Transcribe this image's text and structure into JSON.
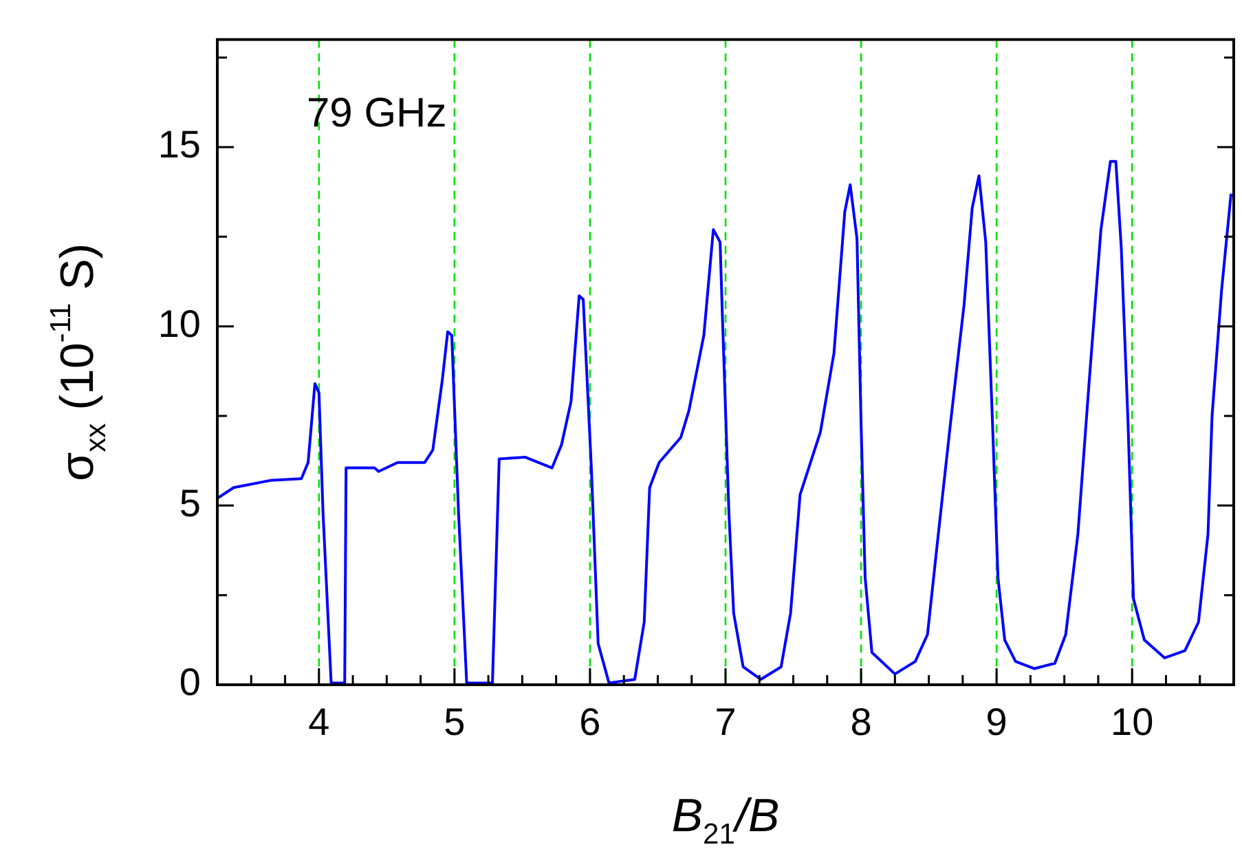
{
  "chart_data": {
    "type": "line",
    "xlabel": "B$_{21}$/B",
    "ylabel": "σ$_{xx}$ (10$^{-11}$ S)",
    "annotations": [
      "79 GHz"
    ],
    "xlim": [
      3.25,
      10.75
    ],
    "ylim": [
      0,
      18
    ],
    "xticks": [
      {
        "value": 3.5,
        "label": null
      },
      {
        "value": 3.75,
        "label": null
      },
      4,
      {
        "value": 4.25,
        "label": null
      },
      {
        "value": 4.5,
        "label": null
      },
      {
        "value": 4.75,
        "label": null
      },
      5,
      {
        "value": 5.25,
        "label": null
      },
      {
        "value": 5.5,
        "label": null
      },
      {
        "value": 5.75,
        "label": null
      },
      6,
      {
        "value": 6.25,
        "label": null
      },
      {
        "value": 6.5,
        "label": null
      },
      {
        "value": 6.75,
        "label": null
      },
      7,
      {
        "value": 7.25,
        "label": null
      },
      {
        "value": 7.5,
        "label": null
      },
      {
        "value": 7.75,
        "label": null
      },
      8,
      {
        "value": 8.25,
        "label": null
      },
      {
        "value": 8.5,
        "label": null
      },
      {
        "value": 8.75,
        "label": null
      },
      9,
      {
        "value": 9.25,
        "label": null
      },
      {
        "value": 9.5,
        "label": null
      },
      {
        "value": 9.75,
        "label": null
      },
      10,
      {
        "value": 10.25,
        "label": null
      },
      {
        "value": 10.5,
        "label": null
      }
    ],
    "yticks": [
      0,
      {
        "value": 2.5,
        "label": null
      },
      5,
      {
        "value": 7.5,
        "label": null
      },
      10,
      {
        "value": 12.5,
        "label": null
      },
      15,
      {
        "value": 17.5,
        "label": null
      }
    ],
    "grid": false,
    "legend": false,
    "marker": "none",
    "line_style": "solid",
    "ref_lines": [
      {
        "axis": "x",
        "value": 4,
        "color": "#00e000",
        "line_style": "dashed"
      },
      {
        "axis": "x",
        "value": 5,
        "color": "#00e000",
        "line_style": "dashed"
      },
      {
        "axis": "x",
        "value": 6,
        "color": "#00e000",
        "line_style": "dashed"
      },
      {
        "axis": "x",
        "value": 7,
        "color": "#00e000",
        "line_style": "dashed"
      },
      {
        "axis": "x",
        "value": 8,
        "color": "#00e000",
        "line_style": "dashed"
      },
      {
        "axis": "x",
        "value": 9,
        "color": "#00e000",
        "line_style": "dashed"
      },
      {
        "axis": "x",
        "value": 10,
        "color": "#00e000",
        "line_style": "dashed"
      }
    ],
    "series": [
      {
        "color": "#0000ff",
        "x": [
          3.25,
          3.37,
          3.64,
          3.87,
          3.92,
          3.97,
          4.0,
          4.03,
          4.09,
          4.19,
          4.2,
          4.41,
          4.44,
          4.58,
          4.78,
          4.84,
          4.91,
          4.95,
          4.98,
          5.03,
          5.09,
          5.28,
          5.33,
          5.52,
          5.72,
          5.79,
          5.86,
          5.92,
          5.95,
          6.01,
          6.06,
          6.14,
          6.33,
          6.4,
          6.44,
          6.51,
          6.67,
          6.73,
          6.84,
          6.91,
          6.96,
          6.975,
          7.025,
          7.06,
          7.13,
          7.26,
          7.41,
          7.48,
          7.55,
          7.7,
          7.8,
          7.88,
          7.92,
          7.97,
          8.0,
          8.03,
          8.08,
          8.25,
          8.4,
          8.49,
          8.57,
          8.66,
          8.76,
          8.82,
          8.87,
          8.92,
          8.97,
          9.01,
          9.06,
          9.14,
          9.28,
          9.43,
          9.51,
          9.6,
          9.68,
          9.77,
          9.84,
          9.88,
          9.92,
          9.97,
          10.01,
          10.09,
          10.24,
          10.39,
          10.49,
          10.56,
          10.59,
          10.66,
          10.73
        ],
        "values": [
          5.2,
          5.5,
          5.7,
          5.75,
          6.2,
          8.4,
          8.15,
          4.8,
          0.05,
          0.05,
          6.05,
          6.05,
          5.95,
          6.2,
          6.2,
          6.55,
          8.5,
          9.85,
          9.75,
          4.8,
          0.05,
          0.05,
          6.3,
          6.35,
          6.05,
          6.7,
          7.9,
          10.85,
          10.75,
          6.05,
          1.15,
          0.05,
          0.15,
          1.75,
          5.5,
          6.2,
          6.9,
          7.65,
          9.75,
          12.7,
          12.35,
          10.5,
          4.8,
          2.0,
          0.5,
          0.15,
          0.5,
          2.0,
          5.3,
          7.05,
          9.25,
          13.2,
          13.95,
          12.45,
          7.3,
          3.0,
          0.9,
          0.3,
          0.65,
          1.4,
          4.2,
          7.3,
          10.6,
          13.3,
          14.2,
          12.35,
          7.3,
          3.0,
          1.25,
          0.65,
          0.45,
          0.6,
          1.4,
          4.2,
          8.3,
          12.7,
          14.6,
          14.6,
          12.2,
          7.3,
          2.4,
          1.25,
          0.75,
          0.95,
          1.75,
          4.2,
          7.5,
          11.0,
          13.7
        ]
      }
    ]
  }
}
